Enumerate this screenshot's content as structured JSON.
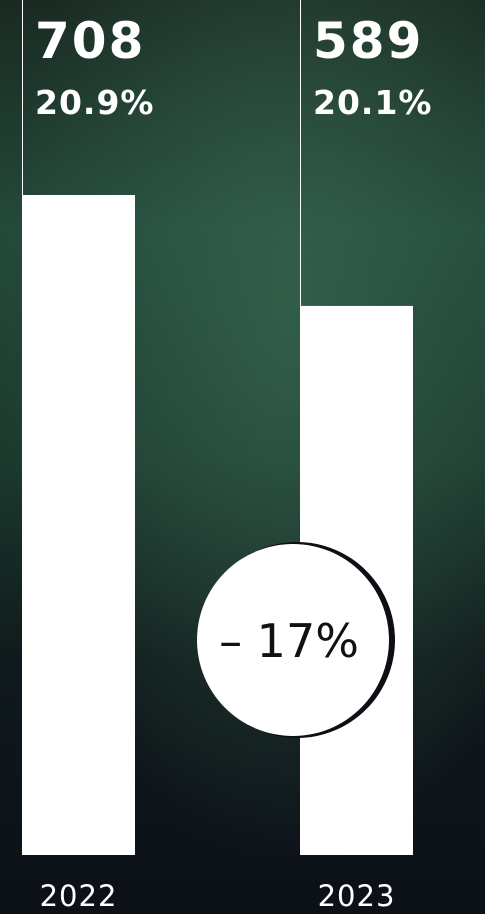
{
  "chart_data": {
    "type": "bar",
    "categories": [
      "2022",
      "2023"
    ],
    "values": [
      708,
      589
    ],
    "secondary_values": [
      20.9,
      20.1
    ],
    "secondary_value_labels": [
      "20.9%",
      "20.1%"
    ],
    "annotation": "– 17%",
    "color": "#ffffff"
  }
}
